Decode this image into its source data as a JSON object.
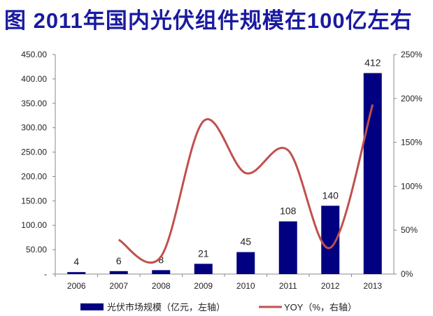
{
  "title": "图  2011年国内光伏组件规模在100亿左右",
  "chart_data": {
    "type": "bar+line",
    "categories": [
      "2006",
      "2007",
      "2008",
      "2009",
      "2010",
      "2011",
      "2012",
      "2013"
    ],
    "series": [
      {
        "name": "光伏市场规模（亿元，左轴）",
        "type": "bar",
        "axis": "left",
        "color": "#000080",
        "values": [
          4,
          6,
          8,
          21,
          45,
          108,
          140,
          412
        ],
        "labels": [
          "4",
          "6",
          "8",
          "21",
          "45",
          "108",
          "140",
          "412"
        ]
      },
      {
        "name": "YOY（%，右轴）",
        "type": "line",
        "axis": "right",
        "color": "#c0504d",
        "smooth": true,
        "values": [
          null,
          39,
          20,
          174,
          115,
          141,
          30,
          193
        ]
      }
    ],
    "left_axis": {
      "range": [
        0,
        450
      ],
      "ticks": [
        "-",
        "50.00",
        "100.00",
        "150.00",
        "200.00",
        "250.00",
        "300.00",
        "350.00",
        "400.00",
        "450.00"
      ]
    },
    "right_axis": {
      "range": [
        0,
        250
      ],
      "ticks": [
        "0%",
        "50%",
        "100%",
        "150%",
        "200%",
        "250%"
      ]
    },
    "grid": false,
    "legend_placement": "bottom"
  }
}
